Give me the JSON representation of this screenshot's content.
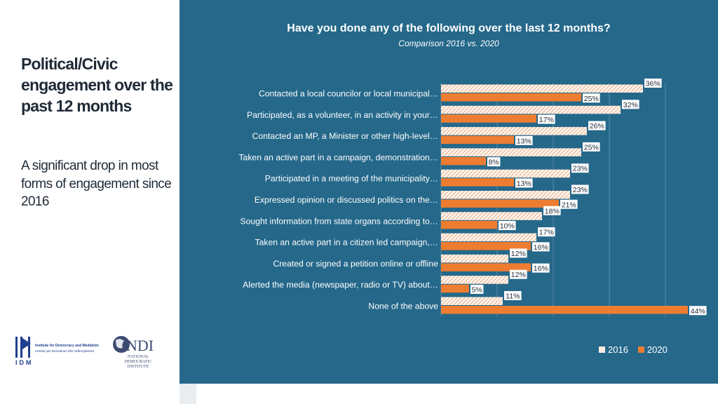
{
  "slide": {
    "title": "Political/Civic engagement over the past 12 months",
    "subtitle": "A significant drop in most forms of engagement since 2016"
  },
  "logos": {
    "idm_name": "Institute for Democracy and Mediation",
    "idm_name_al": "Instituti për Demokraci dhe Ndërmjetësim",
    "idm_abbr": "IDM",
    "ndi_abbr": "NDI",
    "ndi_name": "NATIONAL DEMOCRATIC INSTITUTE"
  },
  "colors": {
    "panel": "#25688a",
    "series_2016": "#f7dcc9",
    "series_2020": "#ee7d31",
    "title_text": "#1f2a36"
  },
  "chart_data": {
    "type": "bar",
    "orientation": "horizontal",
    "title": "Have you done any of the following over the last 12 months?",
    "subtitle": "Comparison 2016 vs. 2020",
    "categories": [
      "Contacted a local councilor or local municipal…",
      "Participated, as a volunteer, in an activity in your…",
      "Contacted an MP, a Minister or other high-level…",
      "Taken an active part in a campaign, demonstration…",
      "Participated in a meeting of the municipality…",
      "Expressed opinion or discussed politics on the…",
      "Sought information from state organs according to…",
      "Taken an active part in a citizen led campaign,…",
      "Created or signed a petition online or offline",
      "Alerted the media (newspaper, radio or TV) about…",
      "None of the above"
    ],
    "series": [
      {
        "name": "2016",
        "values": [
          36,
          32,
          26,
          25,
          23,
          23,
          18,
          17,
          12,
          12,
          11
        ],
        "labels": [
          "36%",
          "32%",
          "26%",
          "25%",
          "23%",
          "23%",
          "18%",
          "17%",
          "12%",
          "12%",
          "11%"
        ]
      },
      {
        "name": "2020",
        "values": [
          25,
          17,
          13,
          8,
          13,
          21,
          10,
          16,
          16,
          5,
          44
        ],
        "labels": [
          "25%",
          "17%",
          "13%",
          "8%",
          "13%",
          "21%",
          "10%",
          "16%",
          "16%",
          "5%",
          "44%"
        ]
      }
    ],
    "xlim": [
      0,
      45
    ],
    "legend": "bottom",
    "grid": true
  }
}
